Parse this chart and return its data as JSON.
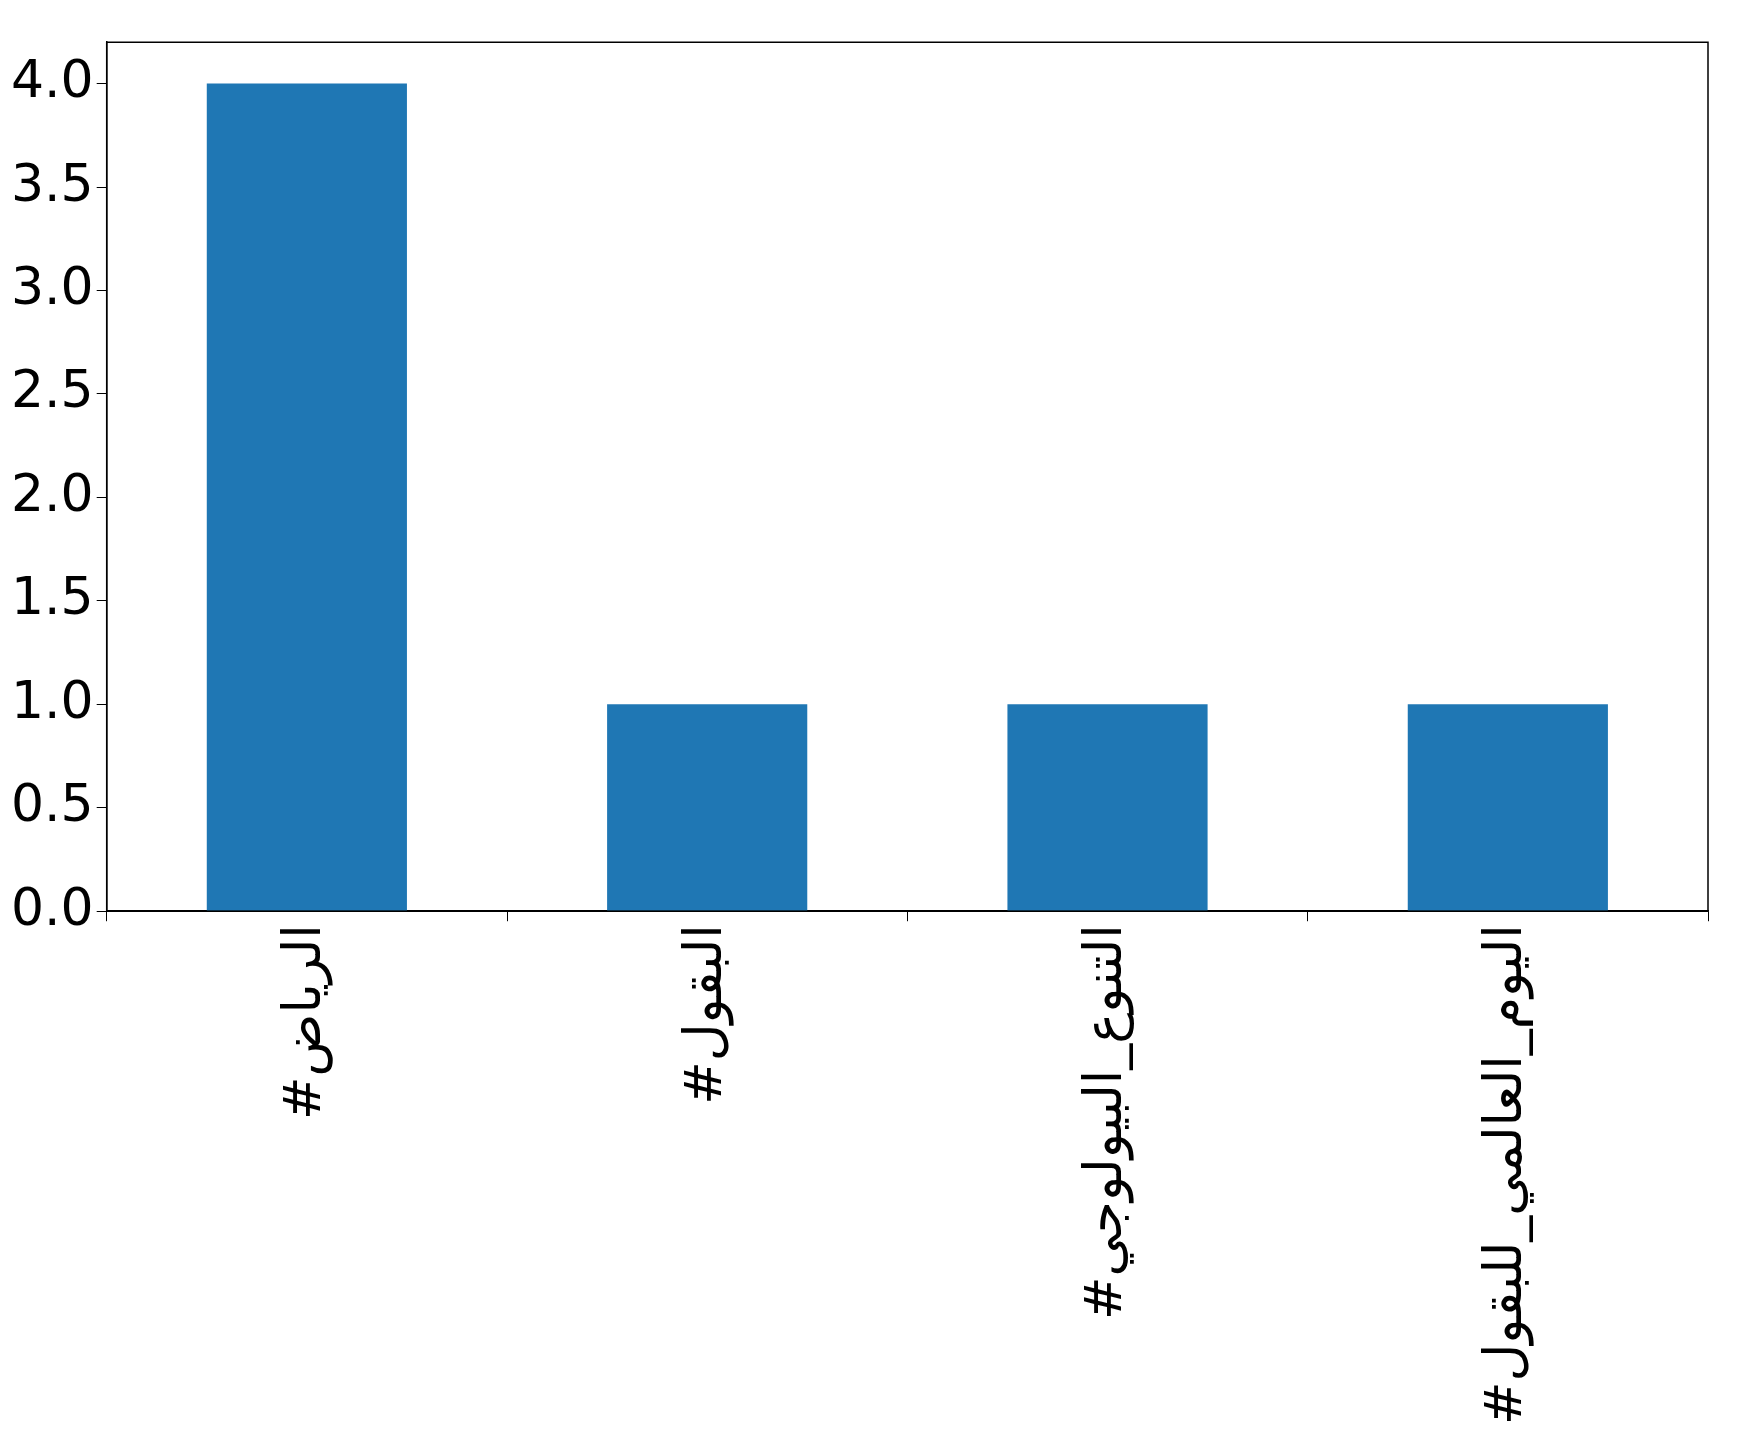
{
  "chart_data": {
    "type": "bar",
    "categories": [
      "#الرياض",
      "#البقول",
      "#التنوع_البيولوجي",
      "#اليوم_العالمي_للبقول"
    ],
    "values": [
      4,
      1,
      1,
      1
    ],
    "color": "#1f77b4",
    "ylim": [
      0,
      4.2
    ],
    "yticks": [
      {
        "value": 0,
        "label": "0.0"
      },
      {
        "value": 0.5,
        "label": "0.5"
      },
      {
        "value": 1,
        "label": "1.0"
      },
      {
        "value": 1.5,
        "label": "1.5"
      },
      {
        "value": 2,
        "label": "2.0"
      },
      {
        "value": 2.5,
        "label": "2.5"
      },
      {
        "value": 3,
        "label": "3.0"
      },
      {
        "value": 3.5,
        "label": "3.5"
      },
      {
        "value": 4,
        "label": "4.0"
      }
    ],
    "grid": false,
    "legend": false
  }
}
